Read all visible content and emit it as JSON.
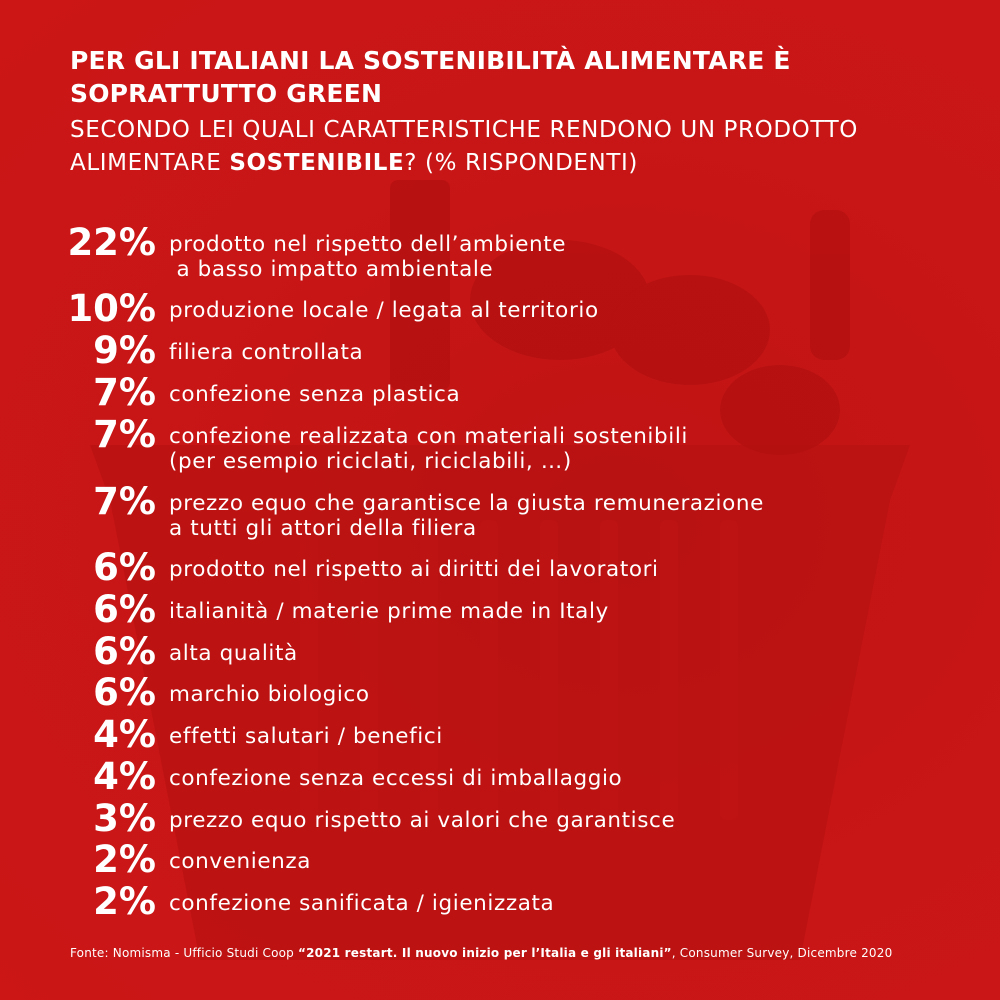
{
  "title": "PER GLI ITALIANI LA SOSTENIBILITÀ ALIMENTARE È SOPRATTUTTO GREEN",
  "subtitle": {
    "before": "SECONDO LEI QUALI CARATTERISTICHE RENDONO UN PRODOTTO ALIMENTARE ",
    "emphasis": "SOSTENIBILE",
    "after": "? (% RISPONDENTI)"
  },
  "chart_data": {
    "type": "table",
    "series": [
      {
        "values": [
          22,
          10,
          9,
          7,
          7,
          7,
          6,
          6,
          6,
          6,
          4,
          4,
          3,
          2,
          2
        ]
      }
    ],
    "rows": [
      {
        "value": "22%",
        "label": "prodotto nel rispetto dell’ambiente\n a basso impatto ambientale"
      },
      {
        "value": "10%",
        "label": "produzione locale / legata al territorio"
      },
      {
        "value": "9%",
        "label": "filiera controllata"
      },
      {
        "value": "7%",
        "label": "confezione senza plastica"
      },
      {
        "value": "7%",
        "label": "confezione realizzata con materiali sostenibili\n(per esempio riciclati, riciclabili, …)"
      },
      {
        "value": "7%",
        "label": "prezzo equo che garantisce la giusta remunerazione\na tutti gli attori della filiera"
      },
      {
        "value": "6%",
        "label": "prodotto nel rispetto ai diritti dei lavoratori"
      },
      {
        "value": "6%",
        "label": "italianità / materie prime made in Italy"
      },
      {
        "value": "6%",
        "label": "alta qualità"
      },
      {
        "value": "6%",
        "label": "marchio biologico"
      },
      {
        "value": "4%",
        "label": "effetti salutari / benefici"
      },
      {
        "value": "4%",
        "label": "confezione senza eccessi di imballaggio"
      },
      {
        "value": "3%",
        "label": "prezzo equo rispetto ai valori che garantisce"
      },
      {
        "value": "2%",
        "label": "convenienza"
      },
      {
        "value": "2%",
        "label": "confezione sanificata / igienizzata"
      }
    ]
  },
  "footer": {
    "prefix": "Fonte: Nomisma - Ufficio Studi Coop ",
    "bold": "“2021 restart. Il nuovo inizio per l’Italia e gli italiani”",
    "suffix": ", Consumer Survey, Dicembre 2020"
  },
  "colors": {
    "background": "#c71515",
    "text": "#ffffff"
  }
}
